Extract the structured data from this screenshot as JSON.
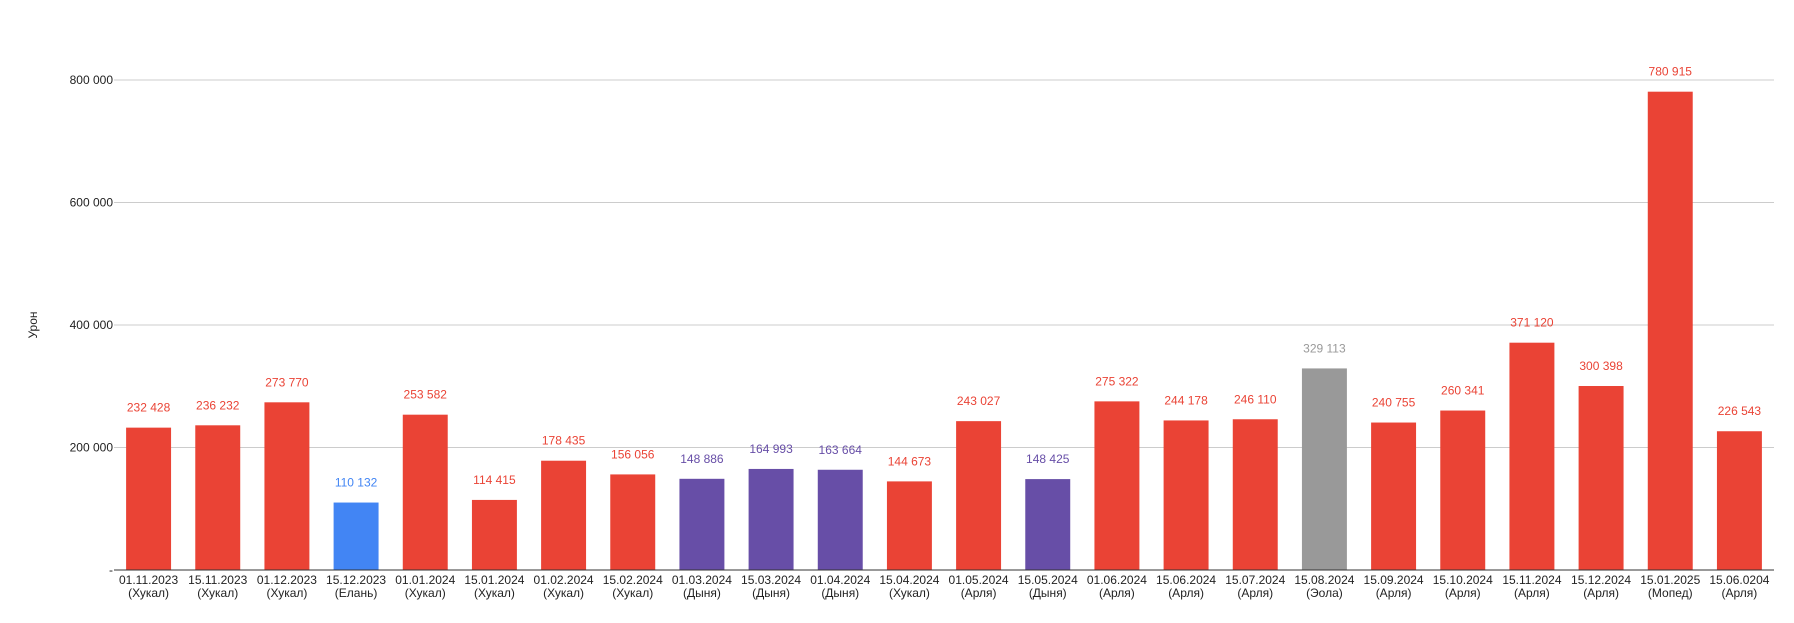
{
  "chart_data": {
    "type": "bar",
    "ylabel": "Урон",
    "xlabel": "",
    "title": "",
    "ylim": [
      0,
      800000
    ],
    "yticks": [
      0,
      200000,
      400000,
      600000,
      800000
    ],
    "ytick_labels": [
      "-",
      "200 000",
      "400 000",
      "600 000",
      "800 000"
    ],
    "grid": true,
    "legend": "none",
    "categories": [
      {
        "date": "01.11.2023",
        "name": "(Хукал)"
      },
      {
        "date": "15.11.2023",
        "name": "(Хукал)"
      },
      {
        "date": "01.12.2023",
        "name": "(Хукал)"
      },
      {
        "date": "15.12.2023",
        "name": "(Елань)"
      },
      {
        "date": "01.01.2024",
        "name": "(Хукал)"
      },
      {
        "date": "15.01.2024",
        "name": "(Хукал)"
      },
      {
        "date": "01.02.2024",
        "name": "(Хукал)"
      },
      {
        "date": "15.02.2024",
        "name": "(Хукал)"
      },
      {
        "date": "01.03.2024",
        "name": "(Дыня)"
      },
      {
        "date": "15.03.2024",
        "name": "(Дыня)"
      },
      {
        "date": "01.04.2024",
        "name": "(Дыня)"
      },
      {
        "date": "15.04.2024",
        "name": "(Хукал)"
      },
      {
        "date": "01.05.2024",
        "name": "(Арля)"
      },
      {
        "date": "15.05.2024",
        "name": "(Дыня)"
      },
      {
        "date": "01.06.2024",
        "name": "(Арля)"
      },
      {
        "date": "15.06.2024",
        "name": "(Арля)"
      },
      {
        "date": "15.07.2024",
        "name": "(Арля)"
      },
      {
        "date": "15.08.2024",
        "name": "(Эола)"
      },
      {
        "date": "15.09.2024",
        "name": "(Арля)"
      },
      {
        "date": "15.10.2024",
        "name": "(Арля)"
      },
      {
        "date": "15.11.2024",
        "name": "(Арля)"
      },
      {
        "date": "15.12.2024",
        "name": "(Арля)"
      },
      {
        "date": "15.01.2025",
        "name": "(Мопед)"
      },
      {
        "date": "15.06.0204",
        "name": "(Арля)"
      }
    ],
    "values": [
      232428,
      236232,
      273770,
      110132,
      253582,
      114415,
      178435,
      156056,
      148886,
      164993,
      163664,
      144673,
      243027,
      148425,
      275322,
      244178,
      246110,
      329113,
      240755,
      260341,
      371120,
      300398,
      780915,
      226543
    ],
    "value_labels": [
      "232 428",
      "236 232",
      "273 770",
      "110 132",
      "253 582",
      "114 415",
      "178 435",
      "156 056",
      "148 886",
      "164 993",
      "163 664",
      "144 673",
      "243 027",
      "148 425",
      "275 322",
      "244 178",
      "246 110",
      "329 113",
      "240 755",
      "260 341",
      "371 120",
      "300 398",
      "780 915",
      "226 543"
    ],
    "bar_colors": [
      "#ea4335",
      "#ea4335",
      "#ea4335",
      "#4285f4",
      "#ea4335",
      "#ea4335",
      "#ea4335",
      "#ea4335",
      "#674ea7",
      "#674ea7",
      "#674ea7",
      "#ea4335",
      "#ea4335",
      "#674ea7",
      "#ea4335",
      "#ea4335",
      "#ea4335",
      "#999999",
      "#ea4335",
      "#ea4335",
      "#ea4335",
      "#ea4335",
      "#ea4335",
      "#ea4335"
    ],
    "label_colors": [
      "#ea4335",
      "#ea4335",
      "#ea4335",
      "#4285f4",
      "#ea4335",
      "#ea4335",
      "#ea4335",
      "#ea4335",
      "#674ea7",
      "#674ea7",
      "#674ea7",
      "#ea4335",
      "#ea4335",
      "#674ea7",
      "#ea4335",
      "#ea4335",
      "#ea4335",
      "#999999",
      "#ea4335",
      "#ea4335",
      "#ea4335",
      "#ea4335",
      "#ea4335",
      "#ea4335"
    ]
  }
}
